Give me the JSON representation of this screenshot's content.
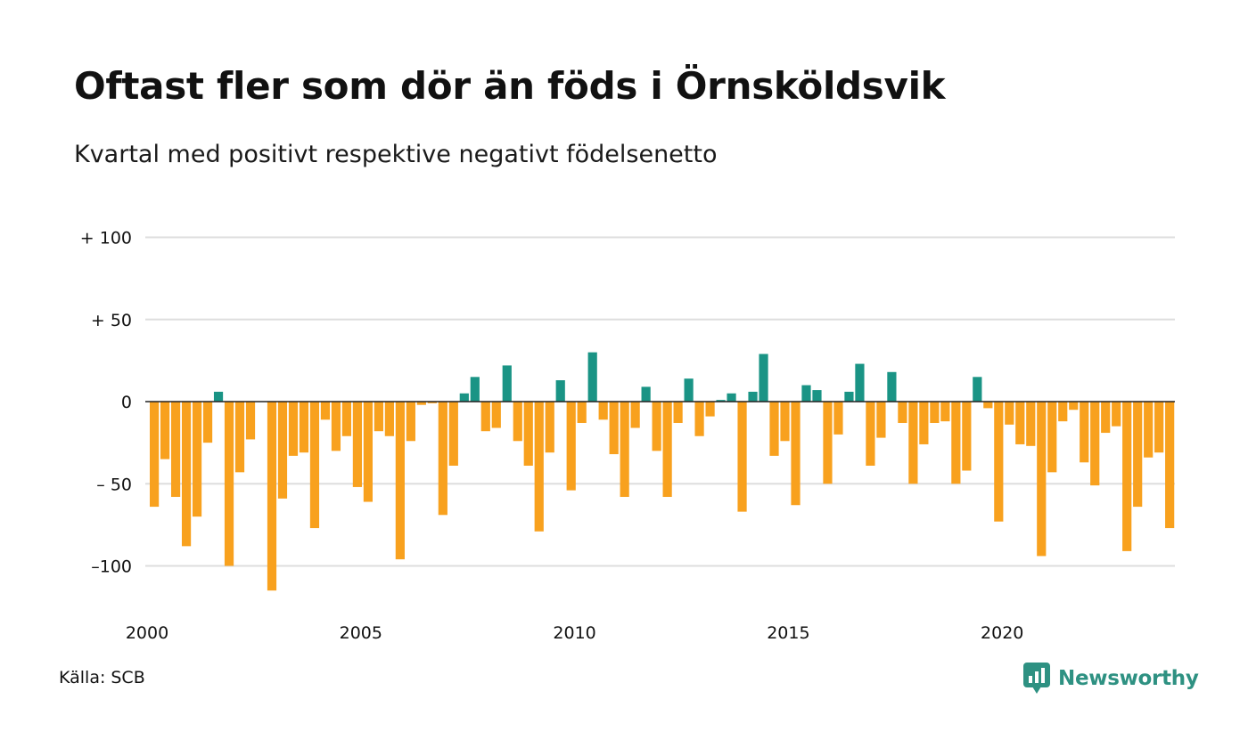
{
  "title": "Oftast fler som dör än föds i Örnsköldsvik",
  "subtitle": "Kvartal med positivt respektive negativt födelsenetto",
  "source": {
    "label": "Källa:",
    "value": "SCB"
  },
  "brand": {
    "name": "Newsworthy",
    "icon": "newsworthy-logo-icon"
  },
  "colors": {
    "positive": "#1a9485",
    "negative": "#f8a11e",
    "grid": "#dddddd",
    "baseline": "#222222"
  },
  "chart_data": {
    "type": "bar",
    "title": "Oftast fler som dör än föds i Örnsköldsvik",
    "subtitle": "Kvartal med positivt respektive negativt födelsenetto",
    "xlabel": "",
    "ylabel": "",
    "start_year": 2000,
    "quarters_per_year": 4,
    "ylim": [
      -120,
      100
    ],
    "yticks": [
      {
        "value": 100,
        "label": "+ 100"
      },
      {
        "value": 50,
        "label": "+  50"
      },
      {
        "value": 0,
        "label": "0"
      },
      {
        "value": -50,
        "label": "– 50"
      },
      {
        "value": -100,
        "label": "–100"
      }
    ],
    "xticks": [
      {
        "value": 2000,
        "label": "2000"
      },
      {
        "value": 2005,
        "label": "2005"
      },
      {
        "value": 2010,
        "label": "2010"
      },
      {
        "value": 2015,
        "label": "2015"
      },
      {
        "value": 2020,
        "label": "2020"
      }
    ],
    "grid": true,
    "values": [
      -64,
      -35,
      -58,
      -88,
      -70,
      -25,
      6,
      -100,
      -43,
      -23,
      0,
      -115,
      -59,
      -33,
      -31,
      -77,
      -11,
      -30,
      -21,
      -52,
      -61,
      -18,
      -21,
      -96,
      -24,
      -2,
      -1,
      -69,
      -39,
      5,
      15,
      -18,
      -16,
      22,
      -24,
      -39,
      -79,
      -31,
      13,
      -54,
      -13,
      30,
      -11,
      -32,
      -58,
      -16,
      9,
      -30,
      -58,
      -13,
      14,
      -21,
      -9,
      1,
      5,
      -67,
      6,
      29,
      -33,
      -24,
      -63,
      10,
      7,
      -50,
      -20,
      6,
      23,
      -39,
      -22,
      18,
      -13,
      -50,
      -26,
      -13,
      -12,
      -50,
      -42,
      15,
      -4,
      -73,
      -14,
      -26,
      -27,
      -94,
      -43,
      -12,
      -5,
      -37,
      -51,
      -19,
      -15,
      -91,
      -64,
      -34,
      -31,
      -77
    ]
  }
}
